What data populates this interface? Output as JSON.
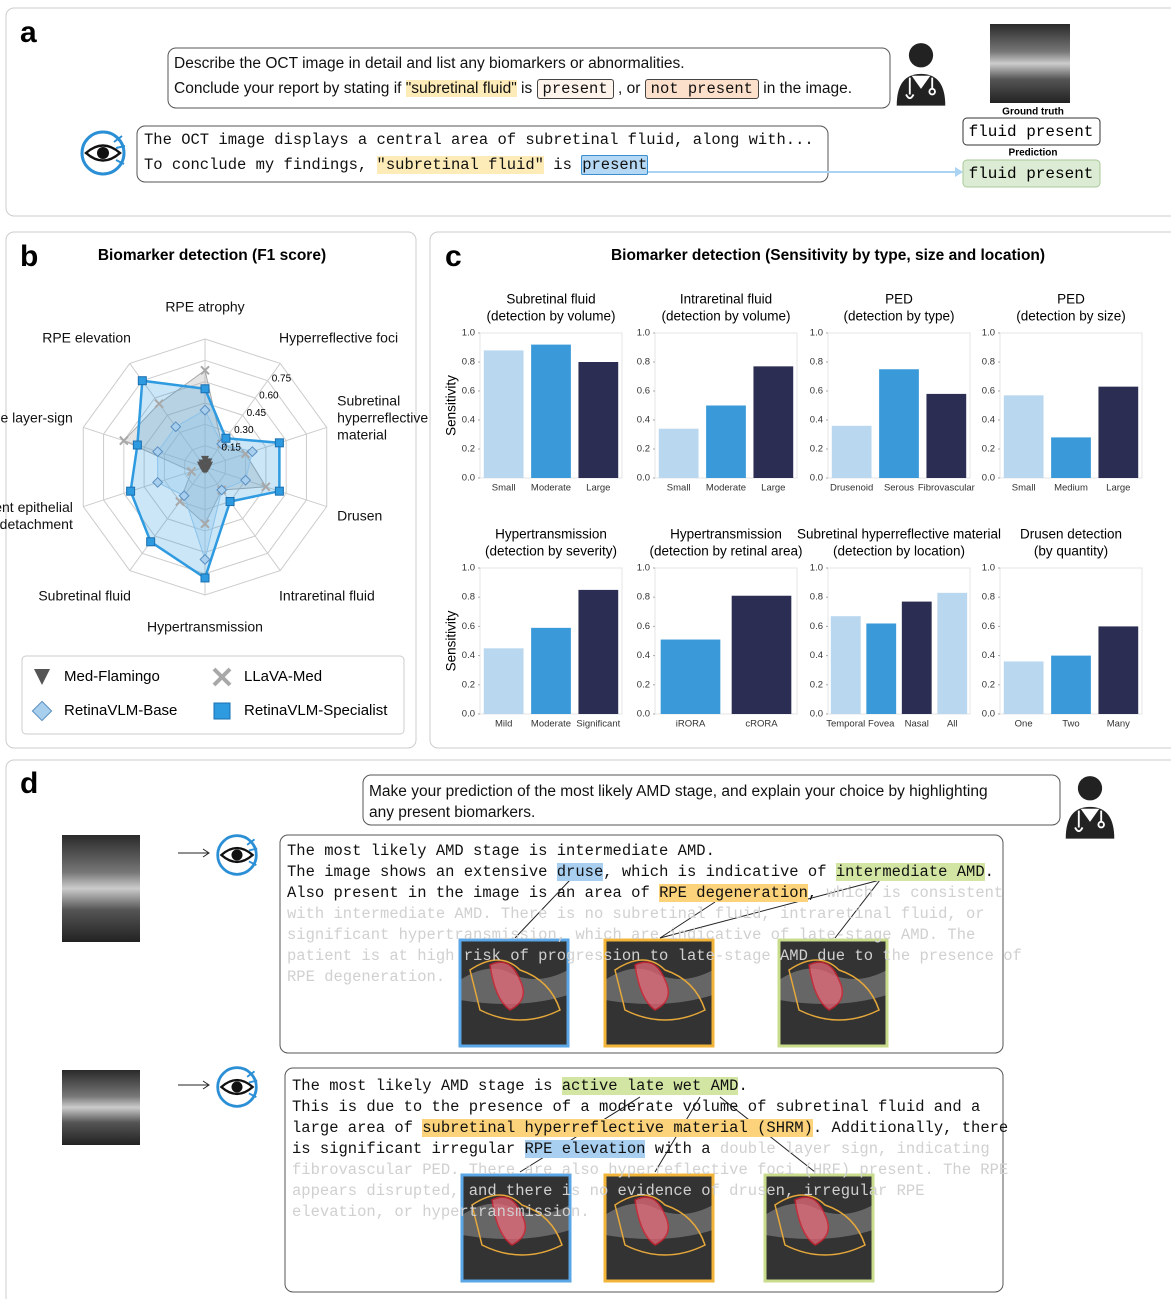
{
  "panel_labels": [
    "a",
    "b",
    "c",
    "d"
  ],
  "panel_a": {
    "prompt_lines": [
      [
        "Describe the OCT image in detail and list any biomarkers or abnormalities."
      ],
      [
        "Conclude your report by stating if ",
        {
          "text": "\"subretinal fluid\"",
          "style": "quote"
        },
        " is ",
        {
          "text": "present",
          "style": "box"
        },
        " , or ",
        {
          "text": "not present",
          "style": "box-orange"
        },
        " in the image."
      ]
    ],
    "answer_lines": [
      [
        "The OCT image displays a central area of subretinal fluid, along with..."
      ],
      [
        "To conclude my findings, ",
        {
          "text": "\"subretinal fluid\"",
          "style": "quote"
        },
        " is ",
        {
          "text": "present",
          "style": "box-blue"
        }
      ]
    ],
    "ground_truth_label": "Ground truth",
    "ground_truth": "fluid present",
    "prediction_label": "Prediction",
    "prediction": "fluid present"
  },
  "panel_c_title": "Biomarker detection (Sensitivity by type, size and location)",
  "chart_data": [
    {
      "type": "radar",
      "title": "Biomarker detection (F1 score)",
      "categories": [
        "RPE atrophy",
        "Hyperreflective foci",
        "Subretinal hyperreflective material",
        "Drusen",
        "Intraretinal fluid",
        "Hypertransmission",
        "Subretinal fluid",
        "Pigment epithelial detachment",
        "Double layer-sign",
        "RPE elevation"
      ],
      "rlim": [
        0,
        0.9
      ],
      "rticks": [
        0.15,
        {
          "value": 0.3,
          "label": "0.30"
        },
        0.45,
        {
          "value": 0.6,
          "label": "0.60"
        },
        0.75
      ],
      "series": [
        {
          "name": "Med-Flamingo",
          "color": "#555555",
          "marker": "triangle",
          "values": [
            0.05,
            0.04,
            0.03,
            0.02,
            0.02,
            0.02,
            0.02,
            0.02,
            0.03,
            0.03
          ]
        },
        {
          "name": "LLaVA-Med",
          "color": "#a8a8a8",
          "marker": "x",
          "values": [
            0.68,
            0.2,
            0.3,
            0.45,
            0.2,
            0.4,
            0.3,
            0.1,
            0.6,
            0.55
          ]
        },
        {
          "name": "RetinaVLM-Base",
          "color": "#a9cfee",
          "marker": "diamond",
          "values": [
            0.4,
            0.2,
            0.35,
            0.3,
            0.2,
            0.65,
            0.25,
            0.35,
            0.35,
            0.35
          ]
        },
        {
          "name": "RetinaVLM-Specialist",
          "color": "#2e9ae0",
          "marker": "square",
          "values": [
            0.55,
            0.25,
            0.55,
            0.55,
            0.3,
            0.78,
            0.65,
            0.55,
            0.5,
            0.75
          ]
        }
      ]
    },
    {
      "type": "bar",
      "title": "Subretinal fluid",
      "subtitle": "(detection by volume)",
      "ylabel": "Sensitivity",
      "categories": [
        "Small",
        "Moderate",
        "Large"
      ],
      "values": [
        0.88,
        0.92,
        0.8
      ],
      "colors": [
        "#b9d7ee",
        "#3a9ad9",
        "#2b2e52"
      ],
      "ylim": [
        0,
        1
      ],
      "yticks": [
        {
          "value": 0,
          "label": "0.0"
        },
        0.2,
        0.4,
        0.6,
        0.8,
        {
          "value": 1,
          "label": "1.0"
        }
      ]
    },
    {
      "type": "bar",
      "title": "Intraretinal fluid",
      "subtitle": "(detection by volume)",
      "categories": [
        "Small",
        "Moderate",
        "Large"
      ],
      "values": [
        0.34,
        0.5,
        0.77
      ],
      "colors": [
        "#b9d7ee",
        "#3a9ad9",
        "#2b2e52"
      ],
      "ylim": [
        0,
        1
      ],
      "yticks": [
        {
          "value": 0,
          "label": "0.0"
        },
        0.2,
        0.4,
        0.6,
        0.8,
        {
          "value": 1,
          "label": "1.0"
        }
      ]
    },
    {
      "type": "bar",
      "title": "PED",
      "subtitle": "(detection by type)",
      "categories": [
        "Drusenoid",
        "Serous",
        "Fibrovascular"
      ],
      "values": [
        0.36,
        0.75,
        0.58
      ],
      "colors": [
        "#b9d7ee",
        "#3a9ad9",
        "#2b2e52"
      ],
      "ylim": [
        0,
        1
      ],
      "yticks": [
        {
          "value": 0,
          "label": "0.0"
        },
        0.2,
        0.4,
        0.6,
        0.8,
        {
          "value": 1,
          "label": "1.0"
        }
      ]
    },
    {
      "type": "bar",
      "title": "PED",
      "subtitle": "(detection by size)",
      "categories": [
        "Small",
        "Medium",
        "Large"
      ],
      "values": [
        0.57,
        0.28,
        0.63
      ],
      "colors": [
        "#b9d7ee",
        "#3a9ad9",
        "#2b2e52"
      ],
      "ylim": [
        0,
        1
      ],
      "yticks": [
        {
          "value": 0,
          "label": "0.0"
        },
        0.2,
        0.4,
        0.6,
        0.8,
        {
          "value": 1,
          "label": "1.0"
        }
      ]
    },
    {
      "type": "bar",
      "title": "Hypertransmission",
      "subtitle": "(detection by severity)",
      "ylabel": "Sensitivity",
      "categories": [
        "Mild",
        "Moderate",
        "Significant"
      ],
      "values": [
        0.45,
        0.59,
        0.85
      ],
      "colors": [
        "#b9d7ee",
        "#3a9ad9",
        "#2b2e52"
      ],
      "ylim": [
        0,
        1
      ],
      "yticks": [
        {
          "value": 0,
          "label": "0.0"
        },
        0.2,
        0.4,
        0.6,
        0.8,
        {
          "value": 1,
          "label": "1.0"
        }
      ]
    },
    {
      "type": "bar",
      "title": "Hypertransmission",
      "subtitle": "(detection by retinal area)",
      "categories": [
        "iRORA",
        "cRORA"
      ],
      "values": [
        0.51,
        0.81
      ],
      "colors": [
        "#3a9ad9",
        "#2b2e52"
      ],
      "ylim": [
        0,
        1
      ],
      "yticks": [
        {
          "value": 0,
          "label": "0.0"
        },
        0.2,
        0.4,
        0.6,
        0.8,
        {
          "value": 1,
          "label": "1.0"
        }
      ]
    },
    {
      "type": "bar",
      "title": "Subretinal hyperreflective material",
      "subtitle": "(detection by location)",
      "categories": [
        "Temporal",
        "Fovea",
        "Nasal",
        "All"
      ],
      "values": [
        0.67,
        0.62,
        0.77,
        0.83
      ],
      "colors": [
        "#b9d7ee",
        "#3a9ad9",
        "#2b2e52",
        "#b9d7ee"
      ],
      "ylim": [
        0,
        1
      ],
      "yticks": [
        {
          "value": 0,
          "label": "0.0"
        },
        0.2,
        0.4,
        0.6,
        0.8,
        {
          "value": 1,
          "label": "1.0"
        }
      ]
    },
    {
      "type": "bar",
      "title": "Drusen detection",
      "subtitle": "(by quantity)",
      "categories": [
        "One",
        "Two",
        "Many"
      ],
      "values": [
        0.36,
        0.4,
        0.6
      ],
      "colors": [
        "#b9d7ee",
        "#3a9ad9",
        "#2b2e52"
      ],
      "ylim": [
        0,
        1
      ],
      "yticks": [
        {
          "value": 0,
          "label": "0.0"
        },
        0.2,
        0.4,
        0.6,
        0.8,
        {
          "value": 1,
          "label": "1.0"
        }
      ]
    }
  ],
  "panel_d": {
    "prompt_lines": [
      [
        "Make your prediction of the most likely AMD stage, and explain your choice by highlighting"
      ],
      [
        "any present biomarkers."
      ]
    ],
    "cases": [
      {
        "lines": [
          [
            "The most likely AMD stage is intermediate AMD."
          ],
          [
            "The image shows an extensive ",
            {
              "text": "druse",
              "style": "blue"
            },
            ", which is indicative of ",
            {
              "text": "intermediate AMD",
              "style": "green"
            },
            "."
          ],
          [
            "Also present in the image is an area of ",
            {
              "text": "RPE degeneration",
              "style": "orange"
            },
            ",",
            {
              "text": " which is consistent",
              "style": "faded"
            }
          ],
          [
            {
              "text": "with intermediate AMD. There is no subretinal fluid, intraretinal fluid, or",
              "style": "faded"
            }
          ],
          [
            {
              "text": "significant hypertransmission, which are indicative of late-stage AMD. The",
              "style": "faded"
            }
          ],
          [
            {
              "text": "patient is at high risk of progression to late-stage AMD due to the presence of",
              "style": "faded"
            }
          ],
          [
            {
              "text": "RPE degeneration.",
              "style": "faded"
            }
          ]
        ]
      },
      {
        "lines": [
          [
            "The most likely AMD stage is ",
            {
              "text": "active late wet AMD",
              "style": "green"
            },
            "."
          ],
          [
            "This is due to the presence of a moderate volume of subretinal fluid and a"
          ],
          [
            "large area of ",
            {
              "text": "subretinal hyperreflective material (SHRM)",
              "style": "orange"
            },
            ". Additionally, there"
          ],
          [
            "is significant irregular ",
            {
              "text": "RPE elevation",
              "style": "blue"
            },
            " with a",
            {
              "text": " double layer sign, indicating",
              "style": "faded"
            }
          ],
          [
            {
              "text": "fibrovascular PED. There are also hyperreflective foci (HRF) present. The RPE",
              "style": "faded"
            }
          ],
          [
            {
              "text": "appears disrupted, and there is no evidence of drusen, irregular RPE",
              "style": "faded"
            }
          ],
          [
            {
              "text": "elevation, or hypertransmission.",
              "style": "faded"
            }
          ]
        ]
      }
    ]
  }
}
